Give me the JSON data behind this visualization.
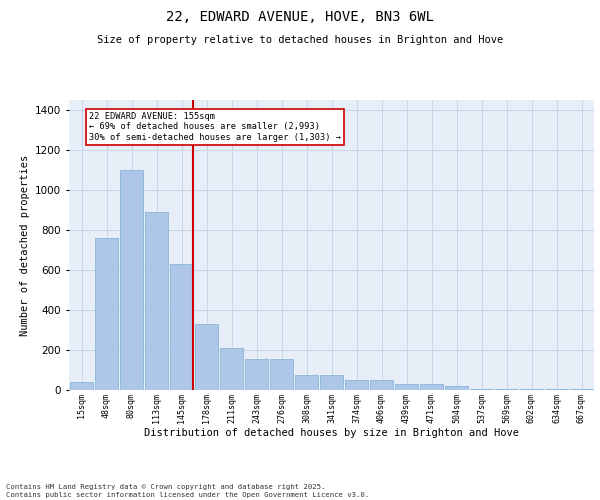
{
  "title_line1": "22, EDWARD AVENUE, HOVE, BN3 6WL",
  "title_line2": "Size of property relative to detached houses in Brighton and Hove",
  "xlabel": "Distribution of detached houses by size in Brighton and Hove",
  "ylabel": "Number of detached properties",
  "categories": [
    "15sqm",
    "48sqm",
    "80sqm",
    "113sqm",
    "145sqm",
    "178sqm",
    "211sqm",
    "243sqm",
    "276sqm",
    "308sqm",
    "341sqm",
    "374sqm",
    "406sqm",
    "439sqm",
    "471sqm",
    "504sqm",
    "537sqm",
    "569sqm",
    "602sqm",
    "634sqm",
    "667sqm"
  ],
  "values": [
    40,
    760,
    1100,
    890,
    630,
    330,
    210,
    155,
    155,
    75,
    75,
    50,
    50,
    30,
    30,
    20,
    5,
    5,
    5,
    5,
    5
  ],
  "bar_color": "#aec6e8",
  "bar_edge_color": "#7aafd4",
  "grid_color": "#c8d4e8",
  "background_color": "#e8eef8",
  "vline_color": "#cc0000",
  "annotation_text": "22 EDWARD AVENUE: 155sqm\n← 69% of detached houses are smaller (2,993)\n30% of semi-detached houses are larger (1,303) →",
  "annotation_box_color": "#ffffff",
  "annotation_box_edge": "#cc0000",
  "ylim": [
    0,
    1450
  ],
  "yticks": [
    0,
    200,
    400,
    600,
    800,
    1000,
    1200,
    1400
  ],
  "footer": "Contains HM Land Registry data © Crown copyright and database right 2025.\nContains public sector information licensed under the Open Government Licence v3.0."
}
